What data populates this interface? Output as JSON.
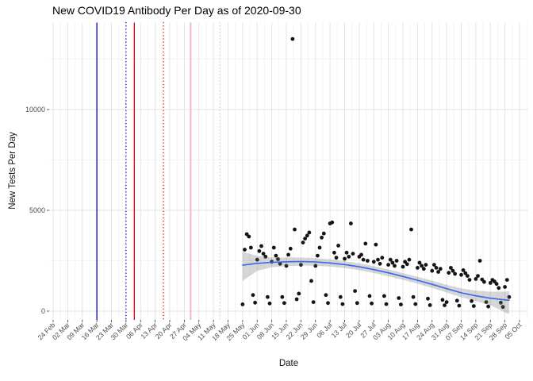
{
  "title": "New COVID19 Antibody Per Day as of 2020-09-30",
  "axes": {
    "x_title": "Date",
    "y_title": "New Tests Per Day"
  },
  "chart_data": {
    "type": "scatter",
    "title": "New COVID19 Antibody Per Day as of 2020-09-30",
    "xlabel": "Date",
    "ylabel": "New Tests Per Day",
    "grid": "on",
    "legend": "none",
    "x_range_days": [
      "2020-02-24",
      "2020-10-05"
    ],
    "ylim": [
      -430,
      14300
    ],
    "y_ticks": [
      0,
      5000,
      10000
    ],
    "y_minor_ticks": [
      2500,
      7500,
      12500
    ],
    "x_tick_labels": [
      "24 Feb",
      "02 Mar",
      "09 Mar",
      "16 Mar",
      "23 Mar",
      "30 Mar",
      "06 Apr",
      "13 Apr",
      "20 Apr",
      "27 Apr",
      "04 May",
      "11 May",
      "18 May",
      "25 May",
      "01 Jun",
      "08 Jun",
      "15 Jun",
      "22 Jun",
      "29 Jun",
      "06 Jul",
      "13 Jul",
      "20 Jul",
      "27 Jul",
      "03 Aug",
      "10 Aug",
      "17 Aug",
      "24 Aug",
      "31 Aug",
      "07 Sep",
      "14 Sep",
      "21 Sep",
      "28 Sep",
      "05 Oct"
    ],
    "colors": {
      "point": "#141414",
      "smooth_line": "#3a66f2",
      "ribbon": "rgba(120,120,120,0.30)",
      "grid_major": "#e3e3e3",
      "grid_minor": "#f0f0f0",
      "tick_label": "#4d4d4d",
      "event_blue": "#0000d0",
      "event_red": "#e00000",
      "event_pink_solid": "#f7b6c2",
      "event_pink_dotted": "#fbd0da"
    },
    "event_lines": [
      {
        "date": "2020-03-16",
        "color": "#0000d0",
        "style": "solid",
        "width": 1.3
      },
      {
        "date": "2020-03-30",
        "color": "#0000d0",
        "style": "dotted",
        "width": 1.4
      },
      {
        "date": "2020-04-03",
        "color": "#e00000",
        "style": "solid",
        "width": 1.3
      },
      {
        "date": "2020-04-17",
        "color": "#e00000",
        "style": "dotted",
        "width": 1.4
      },
      {
        "date": "2020-04-30",
        "color": "#f7b6c2",
        "style": "solid",
        "width": 1.8
      },
      {
        "date": "2020-05-14",
        "color": "#fbd0da",
        "style": "dotted",
        "width": 1.8
      }
    ],
    "smooth_line": [
      [
        "2020-05-25",
        2280
      ],
      [
        "2020-06-01",
        2370
      ],
      [
        "2020-06-08",
        2420
      ],
      [
        "2020-06-15",
        2450
      ],
      [
        "2020-06-22",
        2460
      ],
      [
        "2020-06-29",
        2440
      ],
      [
        "2020-07-06",
        2390
      ],
      [
        "2020-07-13",
        2310
      ],
      [
        "2020-07-20",
        2200
      ],
      [
        "2020-07-27",
        2060
      ],
      [
        "2020-08-03",
        1900
      ],
      [
        "2020-08-10",
        1720
      ],
      [
        "2020-08-17",
        1530
      ],
      [
        "2020-08-24",
        1330
      ],
      [
        "2020-08-31",
        1120
      ],
      [
        "2020-09-07",
        910
      ],
      [
        "2020-09-14",
        760
      ],
      [
        "2020-09-21",
        640
      ],
      [
        "2020-09-28",
        560
      ],
      [
        "2020-09-30",
        540
      ]
    ],
    "ribbon": [
      [
        "2020-05-25",
        1500,
        2950
      ],
      [
        "2020-06-01",
        2000,
        2740
      ],
      [
        "2020-06-08",
        2180,
        2660
      ],
      [
        "2020-06-15",
        2240,
        2660
      ],
      [
        "2020-06-22",
        2260,
        2660
      ],
      [
        "2020-06-29",
        2250,
        2630
      ],
      [
        "2020-07-06",
        2210,
        2570
      ],
      [
        "2020-07-13",
        2140,
        2480
      ],
      [
        "2020-07-20",
        2030,
        2370
      ],
      [
        "2020-07-27",
        1890,
        2230
      ],
      [
        "2020-08-03",
        1730,
        2070
      ],
      [
        "2020-08-10",
        1550,
        1890
      ],
      [
        "2020-08-17",
        1360,
        1700
      ],
      [
        "2020-08-24",
        1150,
        1510
      ],
      [
        "2020-08-31",
        930,
        1310
      ],
      [
        "2020-09-07",
        690,
        1130
      ],
      [
        "2020-09-14",
        500,
        1020
      ],
      [
        "2020-09-21",
        300,
        960
      ],
      [
        "2020-09-28",
        -60,
        970
      ],
      [
        "2020-09-30",
        -150,
        990
      ]
    ],
    "points": [
      [
        "2020-05-25",
        340
      ],
      [
        "2020-05-26",
        3050
      ],
      [
        "2020-05-27",
        3820
      ],
      [
        "2020-05-28",
        3700
      ],
      [
        "2020-05-29",
        3150
      ],
      [
        "2020-05-30",
        800
      ],
      [
        "2020-05-31",
        420
      ],
      [
        "2020-06-01",
        2550
      ],
      [
        "2020-06-02",
        2980
      ],
      [
        "2020-06-03",
        3230
      ],
      [
        "2020-06-04",
        2850
      ],
      [
        "2020-06-05",
        2700
      ],
      [
        "2020-06-06",
        700
      ],
      [
        "2020-06-07",
        380
      ],
      [
        "2020-06-08",
        2450
      ],
      [
        "2020-06-09",
        3150
      ],
      [
        "2020-06-10",
        2750
      ],
      [
        "2020-06-11",
        2580
      ],
      [
        "2020-06-12",
        2350
      ],
      [
        "2020-06-13",
        700
      ],
      [
        "2020-06-14",
        400
      ],
      [
        "2020-06-15",
        2250
      ],
      [
        "2020-06-16",
        2800
      ],
      [
        "2020-06-17",
        3100
      ],
      [
        "2020-06-18",
        13500
      ],
      [
        "2020-06-19",
        4050
      ],
      [
        "2020-06-20",
        590
      ],
      [
        "2020-06-21",
        870
      ],
      [
        "2020-06-22",
        2300
      ],
      [
        "2020-06-23",
        3400
      ],
      [
        "2020-06-24",
        3600
      ],
      [
        "2020-06-25",
        3750
      ],
      [
        "2020-06-26",
        3900
      ],
      [
        "2020-06-27",
        1500
      ],
      [
        "2020-06-28",
        450
      ],
      [
        "2020-06-29",
        2250
      ],
      [
        "2020-06-30",
        2750
      ],
      [
        "2020-07-01",
        3150
      ],
      [
        "2020-07-02",
        3650
      ],
      [
        "2020-07-03",
        3850
      ],
      [
        "2020-07-04",
        800
      ],
      [
        "2020-07-05",
        400
      ],
      [
        "2020-07-06",
        4350
      ],
      [
        "2020-07-07",
        4400
      ],
      [
        "2020-07-08",
        2900
      ],
      [
        "2020-07-09",
        2650
      ],
      [
        "2020-07-10",
        3250
      ],
      [
        "2020-07-11",
        700
      ],
      [
        "2020-07-12",
        350
      ],
      [
        "2020-07-13",
        2600
      ],
      [
        "2020-07-14",
        2900
      ],
      [
        "2020-07-15",
        2700
      ],
      [
        "2020-07-16",
        4350
      ],
      [
        "2020-07-17",
        2850
      ],
      [
        "2020-07-18",
        1000
      ],
      [
        "2020-07-19",
        400
      ],
      [
        "2020-07-20",
        2700
      ],
      [
        "2020-07-21",
        2800
      ],
      [
        "2020-07-22",
        2550
      ],
      [
        "2020-07-23",
        3350
      ],
      [
        "2020-07-24",
        2500
      ],
      [
        "2020-07-25",
        750
      ],
      [
        "2020-07-26",
        380
      ],
      [
        "2020-07-27",
        2450
      ],
      [
        "2020-07-28",
        3300
      ],
      [
        "2020-07-29",
        2550
      ],
      [
        "2020-07-30",
        2350
      ],
      [
        "2020-07-31",
        2650
      ],
      [
        "2020-08-01",
        750
      ],
      [
        "2020-08-02",
        350
      ],
      [
        "2020-08-03",
        2300
      ],
      [
        "2020-08-04",
        2550
      ],
      [
        "2020-08-05",
        2400
      ],
      [
        "2020-08-06",
        2250
      ],
      [
        "2020-08-07",
        2500
      ],
      [
        "2020-08-08",
        650
      ],
      [
        "2020-08-09",
        330
      ],
      [
        "2020-08-10",
        2200
      ],
      [
        "2020-08-11",
        2450
      ],
      [
        "2020-08-12",
        2330
      ],
      [
        "2020-08-13",
        2550
      ],
      [
        "2020-08-14",
        4050
      ],
      [
        "2020-08-15",
        700
      ],
      [
        "2020-08-16",
        350
      ],
      [
        "2020-08-17",
        2150
      ],
      [
        "2020-08-18",
        2400
      ],
      [
        "2020-08-19",
        2250
      ],
      [
        "2020-08-20",
        2100
      ],
      [
        "2020-08-21",
        2300
      ],
      [
        "2020-08-22",
        620
      ],
      [
        "2020-08-23",
        300
      ],
      [
        "2020-08-24",
        2000
      ],
      [
        "2020-08-25",
        2300
      ],
      [
        "2020-08-26",
        2150
      ],
      [
        "2020-08-27",
        1950
      ],
      [
        "2020-08-28",
        2100
      ],
      [
        "2020-08-29",
        560
      ],
      [
        "2020-08-30",
        290
      ],
      [
        "2020-08-31",
        450
      ],
      [
        "2020-09-01",
        1900
      ],
      [
        "2020-09-02",
        2150
      ],
      [
        "2020-09-03",
        2000
      ],
      [
        "2020-09-04",
        1850
      ],
      [
        "2020-09-05",
        520
      ],
      [
        "2020-09-06",
        270
      ],
      [
        "2020-09-07",
        1800
      ],
      [
        "2020-09-08",
        2030
      ],
      [
        "2020-09-09",
        1880
      ],
      [
        "2020-09-10",
        1750
      ],
      [
        "2020-09-11",
        1550
      ],
      [
        "2020-09-12",
        500
      ],
      [
        "2020-09-13",
        250
      ],
      [
        "2020-09-14",
        1600
      ],
      [
        "2020-09-15",
        1750
      ],
      [
        "2020-09-16",
        2500
      ],
      [
        "2020-09-17",
        1570
      ],
      [
        "2020-09-18",
        1450
      ],
      [
        "2020-09-19",
        450
      ],
      [
        "2020-09-20",
        230
      ],
      [
        "2020-09-21",
        1400
      ],
      [
        "2020-09-22",
        1550
      ],
      [
        "2020-09-23",
        1470
      ],
      [
        "2020-09-24",
        1350
      ],
      [
        "2020-09-25",
        1150
      ],
      [
        "2020-09-26",
        420
      ],
      [
        "2020-09-27",
        210
      ],
      [
        "2020-09-28",
        1200
      ],
      [
        "2020-09-29",
        1550
      ],
      [
        "2020-09-30",
        700
      ]
    ]
  }
}
